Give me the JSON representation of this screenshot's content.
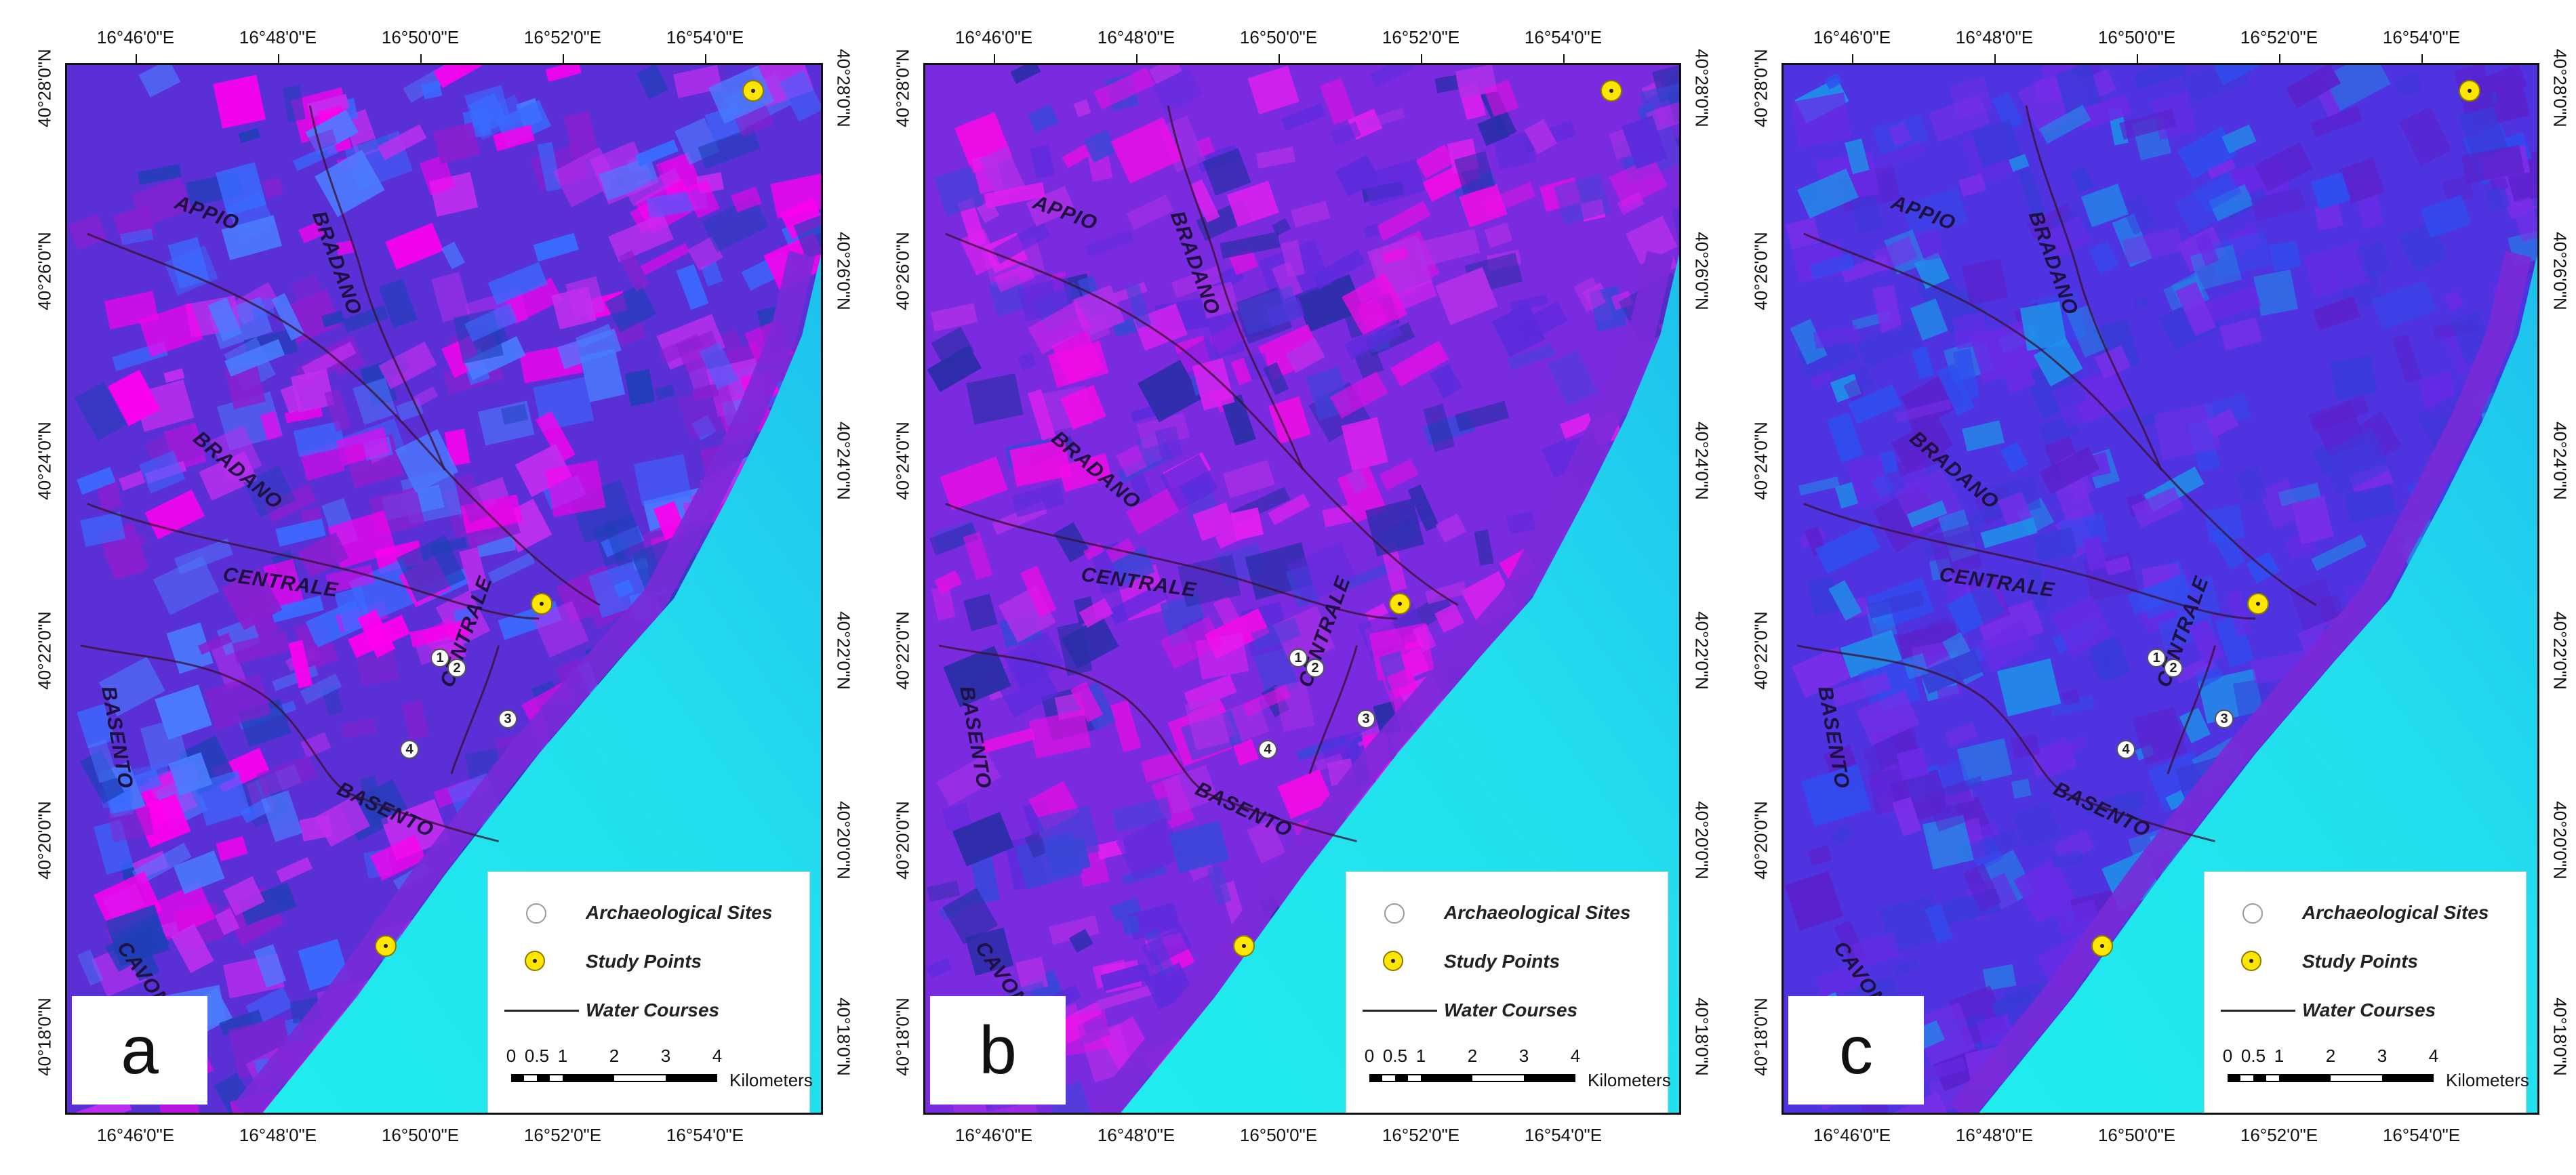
{
  "panels": [
    {
      "id": "a",
      "letter": "a",
      "land_base": "#5a2fd6",
      "land_mix": [
        "#ff00ee",
        "#3a6bff",
        "#1f3fb8",
        "#c22ef0",
        "#4b7cff",
        "#8a1fd0"
      ],
      "sea_colors": [
        "#1ef2ef",
        "#22ddee",
        "#1bb8ec"
      ]
    },
    {
      "id": "b",
      "letter": "b",
      "land_base": "#7a2be0",
      "land_mix": [
        "#f10ce6",
        "#5a2bdc",
        "#3a46d8",
        "#b22fe8",
        "#2a2ea8",
        "#e020f0"
      ],
      "sea_colors": [
        "#1ef2ef",
        "#22ddee",
        "#1bb8ec"
      ]
    },
    {
      "id": "c",
      "letter": "c",
      "land_base": "#4f32e0",
      "land_mix": [
        "#6a2ae6",
        "#3a3ad8",
        "#7b2ee8",
        "#2f4ef0",
        "#5a22cc",
        "#1f8fe8"
      ],
      "sea_colors": [
        "#1ef2ef",
        "#22ddee",
        "#1bb8ec"
      ]
    }
  ],
  "longitude_ticks": [
    "16°46'0\"E",
    "16°48'0\"E",
    "16°50'0\"E",
    "16°52'0\"E",
    "16°54'0\"E"
  ],
  "latitude_ticks": [
    "40°28'0\"N",
    "40°26'0\"N",
    "40°24'0\"N",
    "40°22'0\"N",
    "40°20'0\"N",
    "40°18'0\"N"
  ],
  "rivers": [
    "APPIO",
    "BRADANO",
    "BRADANO",
    "CENTRALE",
    "BASENTO",
    "CENTRALE",
    "BASENTO",
    "CAVONE"
  ],
  "sites": [
    "1",
    "2",
    "3",
    "4"
  ],
  "legend": {
    "archaeological_sites": "Archaeological Sites",
    "study_points": "Study Points",
    "water_courses": "Water Courses",
    "scale_numbers": [
      "0",
      "0.5",
      "1",
      "2",
      "3",
      "4"
    ],
    "scale_unit": "Kilometers"
  },
  "colors": {
    "study_point_fill": "#ffe600",
    "archaeological_fill": "#ffffff",
    "water_course_line": "#3a1030"
  }
}
